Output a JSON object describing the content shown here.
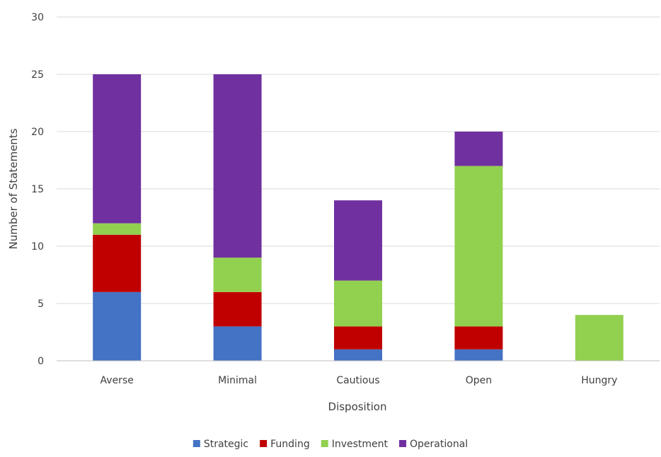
{
  "chart_data": {
    "type": "bar",
    "stacked": true,
    "title": "",
    "xlabel": "Disposition",
    "ylabel": "Number  of Statements",
    "categories": [
      "Averse",
      "Minimal",
      "Cautious",
      "Open",
      "Hungry"
    ],
    "ylim": [
      0,
      30
    ],
    "yticks": [
      0,
      5,
      10,
      15,
      20,
      25,
      30
    ],
    "grid": true,
    "legend_position": "bottom",
    "series": [
      {
        "name": "Strategic",
        "color": "#4472C4",
        "values": [
          6,
          3,
          1,
          1,
          0
        ]
      },
      {
        "name": "Funding",
        "color": "#C00000",
        "values": [
          5,
          3,
          2,
          2,
          0
        ]
      },
      {
        "name": "Investment",
        "color": "#92D050",
        "values": [
          1,
          3,
          4,
          14,
          4
        ]
      },
      {
        "name": "Operational",
        "color": "#7030A0",
        "values": [
          13,
          16,
          7,
          3,
          0
        ]
      }
    ]
  }
}
